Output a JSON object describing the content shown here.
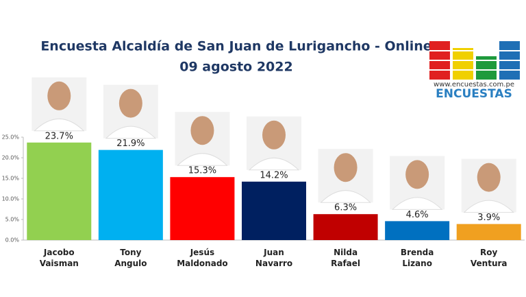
{
  "chart_data": {
    "type": "bar",
    "title": "Encuesta Alcaldía de San Juan de Lurigancho - Online",
    "subtitle": "09 agosto 2022",
    "source": "www.encuestas.com.pe",
    "brand": "ENCUESTAS",
    "categories": [
      "Jacobo Vaisman",
      "Tony Angulo",
      "Jesús Maldonado",
      "Juan Navarro",
      "Nilda Rafael",
      "Brenda Lizano",
      "Roy Ventura"
    ],
    "values": [
      23.7,
      21.9,
      15.3,
      14.2,
      6.3,
      4.6,
      3.9
    ],
    "value_labels": [
      "23.7%",
      "21.9%",
      "15.3%",
      "14.2%",
      "6.3%",
      "4.6%",
      "3.9%"
    ],
    "colors": [
      "#92d050",
      "#00b0f0",
      "#ff0000",
      "#002060",
      "#c00000",
      "#0070c0",
      "#f0a020"
    ],
    "ylim": [
      0,
      25
    ],
    "yticks": [
      {
        "value": 0,
        "label": "0.0%"
      },
      {
        "value": 5,
        "label": "5.0%"
      },
      {
        "value": 10,
        "label": "10.0%"
      },
      {
        "value": 15,
        "label": "15.0%"
      },
      {
        "value": 20,
        "label": "20.0%"
      },
      {
        "value": 25,
        "label": "25.0%"
      }
    ]
  }
}
